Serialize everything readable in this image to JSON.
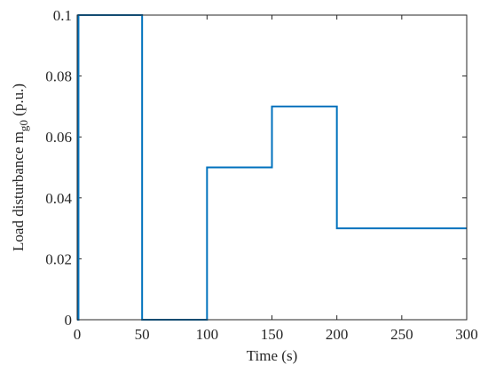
{
  "chart_data": {
    "type": "line",
    "title": "",
    "xlabel": "Time (s)",
    "ylabel": {
      "prefix": "Load disturbance m",
      "subscript": "g0",
      "suffix": " (p.u.)"
    },
    "xlim": [
      0,
      300
    ],
    "ylim": [
      0,
      0.1
    ],
    "x_ticks": [
      0,
      50,
      100,
      150,
      200,
      250,
      300
    ],
    "x_tick_labels": [
      "0",
      "50",
      "100",
      "150",
      "200",
      "250",
      "300"
    ],
    "y_ticks": [
      0,
      0.02,
      0.04,
      0.06,
      0.08,
      0.1
    ],
    "y_tick_labels": [
      "0",
      "0.02",
      "0.04",
      "0.06",
      "0.08",
      "0.1"
    ],
    "grid": false,
    "series": [
      {
        "color": "#0072BD",
        "x": [
          0,
          1,
          1,
          50,
          50,
          100,
          100,
          150,
          150,
          200,
          200,
          300
        ],
        "y": [
          0,
          0,
          0.1,
          0.1,
          0,
          0,
          0.05,
          0.05,
          0.07,
          0.07,
          0.03,
          0.03
        ]
      }
    ]
  }
}
